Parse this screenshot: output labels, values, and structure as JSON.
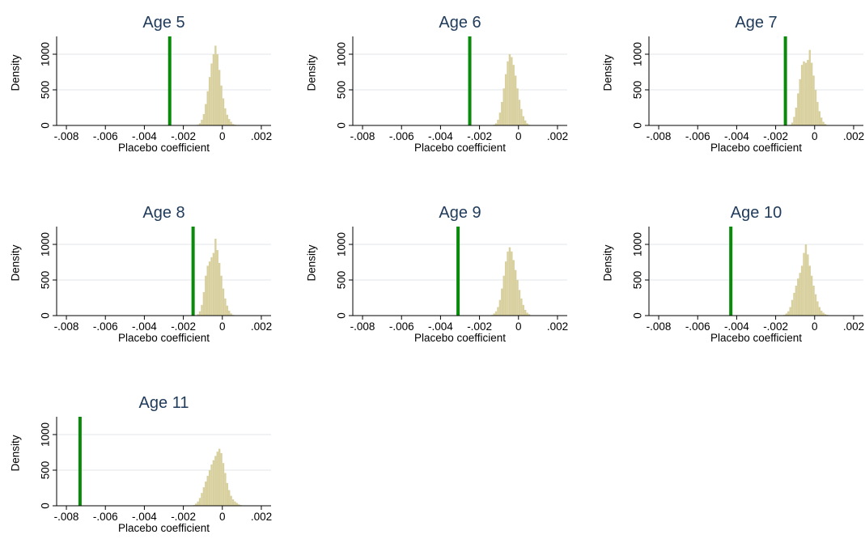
{
  "chart_data": [
    {
      "type": "bar",
      "title": "Age 5",
      "xlabel": "Placebo coefficient",
      "ylabel": "Density",
      "xlim": [
        -0.0085,
        0.0025
      ],
      "ylim": [
        0,
        1250
      ],
      "xticks": [
        -0.008,
        -0.006,
        -0.004,
        -0.002,
        0,
        0.002
      ],
      "xtick_labels": [
        "-.008",
        "-.006",
        "-.004",
        "-.002",
        "0",
        ".002"
      ],
      "yticks": [
        0,
        500,
        1000
      ],
      "ytick_labels": [
        "0",
        "500",
        "1000"
      ],
      "grid": true,
      "reference_line_x": -0.0027,
      "bin_width": 0.0001,
      "bin_start": -0.0013,
      "values": [
        10,
        30,
        80,
        160,
        300,
        480,
        680,
        870,
        1000,
        1120,
        1000,
        780,
        560,
        380,
        240,
        150,
        90,
        50,
        20,
        10
      ]
    },
    {
      "type": "bar",
      "title": "Age 6",
      "xlabel": "Placebo coefficient",
      "ylabel": "Density",
      "xlim": [
        -0.0085,
        0.0025
      ],
      "ylim": [
        0,
        1250
      ],
      "xticks": [
        -0.008,
        -0.006,
        -0.004,
        -0.002,
        0,
        0.002
      ],
      "xtick_labels": [
        "-.008",
        "-.006",
        "-.004",
        "-.002",
        "0",
        ".002"
      ],
      "yticks": [
        0,
        500,
        1000
      ],
      "ytick_labels": [
        "0",
        "500",
        "1000"
      ],
      "grid": true,
      "reference_line_x": -0.0025,
      "bin_width": 0.0001,
      "bin_start": -0.0013,
      "values": [
        10,
        30,
        80,
        180,
        330,
        520,
        720,
        900,
        1000,
        960,
        850,
        700,
        520,
        360,
        230,
        130,
        70,
        30,
        10
      ]
    },
    {
      "type": "bar",
      "title": "Age 7",
      "xlabel": "Placebo coefficient",
      "ylabel": "Density",
      "xlim": [
        -0.0085,
        0.0025
      ],
      "ylim": [
        0,
        1250
      ],
      "xticks": [
        -0.008,
        -0.006,
        -0.004,
        -0.002,
        0,
        0.002
      ],
      "xtick_labels": [
        "-.008",
        "-.006",
        "-.004",
        "-.002",
        "0",
        ".002"
      ],
      "yticks": [
        0,
        500,
        1000
      ],
      "ytick_labels": [
        "0",
        "500",
        "1000"
      ],
      "grid": true,
      "reference_line_x": -0.0015,
      "bin_width": 0.0001,
      "bin_start": -0.0013,
      "values": [
        10,
        40,
        120,
        250,
        450,
        650,
        850,
        900,
        880,
        920,
        1060,
        880,
        700,
        500,
        330,
        200,
        110,
        50,
        20
      ]
    },
    {
      "type": "bar",
      "title": "Age 8",
      "xlabel": "Placebo coefficient",
      "ylabel": "Density",
      "xlim": [
        -0.0085,
        0.0025
      ],
      "ylim": [
        0,
        1250
      ],
      "xticks": [
        -0.008,
        -0.006,
        -0.004,
        -0.002,
        0,
        0.002
      ],
      "xtick_labels": [
        "-.008",
        "-.006",
        "-.004",
        "-.002",
        "0",
        ".002"
      ],
      "yticks": [
        0,
        500,
        1000
      ],
      "ytick_labels": [
        "0",
        "500",
        "1000"
      ],
      "grid": true,
      "reference_line_x": -0.0015,
      "bin_width": 0.0001,
      "bin_start": -0.0013,
      "values": [
        20,
        60,
        150,
        330,
        560,
        700,
        760,
        820,
        880,
        1080,
        920,
        740,
        560,
        380,
        240,
        140,
        70,
        30,
        10
      ]
    },
    {
      "type": "bar",
      "title": "Age 9",
      "xlabel": "Placebo coefficient",
      "ylabel": "Density",
      "xlim": [
        -0.0085,
        0.0025
      ],
      "ylim": [
        0,
        1250
      ],
      "xticks": [
        -0.008,
        -0.006,
        -0.004,
        -0.002,
        0,
        0.002
      ],
      "xtick_labels": [
        "-.008",
        "-.006",
        "-.004",
        "-.002",
        "0",
        ".002"
      ],
      "yticks": [
        0,
        500,
        1000
      ],
      "ytick_labels": [
        "0",
        "500",
        "1000"
      ],
      "grid": true,
      "reference_line_x": -0.0031,
      "bin_width": 0.0001,
      "bin_start": -0.0014,
      "values": [
        10,
        30,
        60,
        120,
        220,
        380,
        560,
        760,
        900,
        960,
        900,
        780,
        640,
        500,
        360,
        240,
        150,
        80,
        40,
        20
      ]
    },
    {
      "type": "bar",
      "title": "Age 10",
      "xlabel": "Placebo coefficient",
      "ylabel": "Density",
      "xlim": [
        -0.0085,
        0.0025
      ],
      "ylim": [
        0,
        1250
      ],
      "xticks": [
        -0.008,
        -0.006,
        -0.004,
        -0.002,
        0,
        0.002
      ],
      "xtick_labels": [
        "-.008",
        "-.006",
        "-.004",
        "-.002",
        "0",
        ".002"
      ],
      "yticks": [
        0,
        500,
        1000
      ],
      "ytick_labels": [
        "0",
        "500",
        "1000"
      ],
      "grid": true,
      "reference_line_x": -0.0043,
      "bin_width": 0.0001,
      "bin_start": -0.0016,
      "values": [
        10,
        30,
        60,
        120,
        220,
        320,
        420,
        520,
        600,
        700,
        880,
        1000,
        860,
        700,
        560,
        420,
        300,
        200,
        120,
        70,
        40,
        20,
        10
      ]
    },
    {
      "type": "bar",
      "title": "Age 11",
      "xlabel": "Placebo coefficient",
      "ylabel": "Density",
      "xlim": [
        -0.0085,
        0.0025
      ],
      "ylim": [
        0,
        1250
      ],
      "xticks": [
        -0.008,
        -0.006,
        -0.004,
        -0.002,
        0,
        0.002
      ],
      "xtick_labels": [
        "-.008",
        "-.006",
        "-.004",
        "-.002",
        "0",
        ".002"
      ],
      "yticks": [
        0,
        500,
        1000
      ],
      "ytick_labels": [
        "0",
        "500",
        "1000"
      ],
      "grid": true,
      "reference_line_x": -0.0073,
      "bin_width": 0.0001,
      "bin_start": -0.0015,
      "values": [
        10,
        30,
        60,
        110,
        180,
        260,
        340,
        420,
        500,
        580,
        640,
        700,
        760,
        800,
        740,
        600,
        460,
        320,
        220,
        140,
        90,
        60,
        40,
        20,
        10
      ]
    }
  ]
}
